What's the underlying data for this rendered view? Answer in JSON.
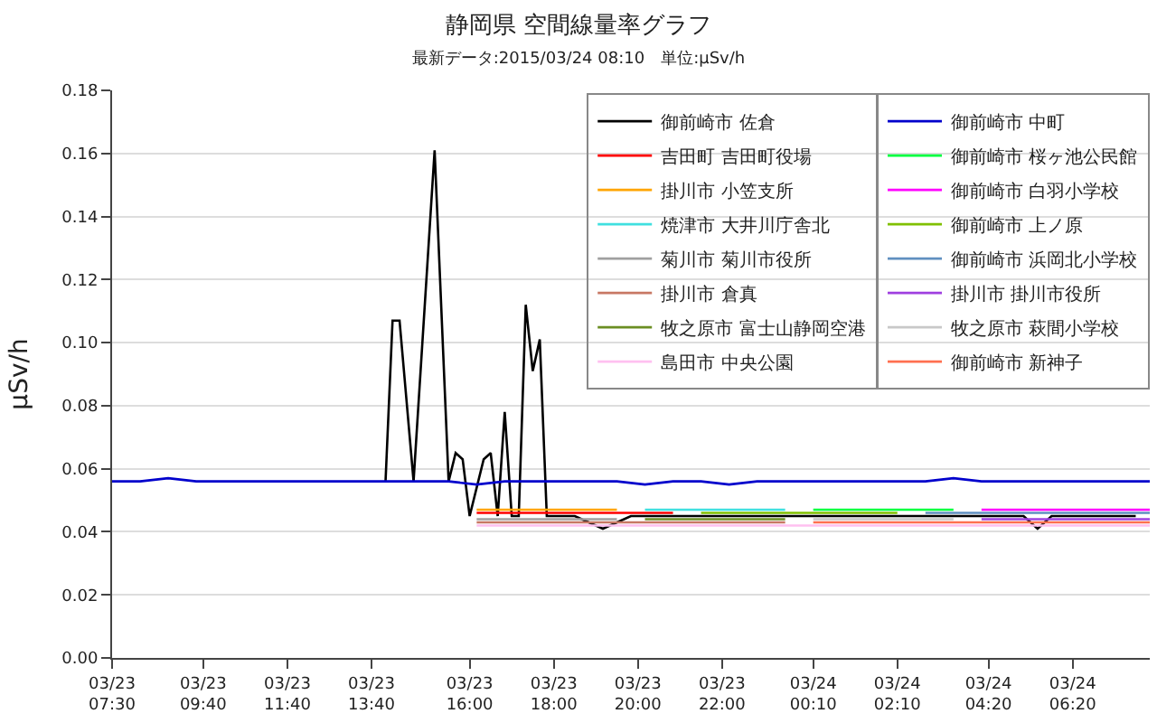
{
  "chart_data": {
    "type": "line",
    "title": "静岡県 空間線量率グラフ",
    "subtitle": "最新データ:2015/03/24 08:10　単位:μSv/h",
    "ylabel": "μSv/h",
    "x": [
      "2015-03-23T07:30",
      "2015-03-23T08:10",
      "2015-03-23T08:50",
      "2015-03-23T09:30",
      "2015-03-23T10:10",
      "2015-03-23T10:50",
      "2015-03-23T11:30",
      "2015-03-23T12:10",
      "2015-03-23T12:50",
      "2015-03-23T13:30",
      "2015-03-23T14:10",
      "2015-03-23T14:50",
      "2015-03-23T15:30",
      "2015-03-23T16:10",
      "2015-03-23T16:50",
      "2015-03-23T17:30",
      "2015-03-23T18:10",
      "2015-03-23T18:50",
      "2015-03-23T19:30",
      "2015-03-23T20:10",
      "2015-03-23T20:50",
      "2015-03-23T21:30",
      "2015-03-23T22:10",
      "2015-03-23T22:50",
      "2015-03-23T23:30",
      "2015-03-24T00:10",
      "2015-03-24T00:50",
      "2015-03-24T01:30",
      "2015-03-24T02:10",
      "2015-03-24T02:50",
      "2015-03-24T03:30",
      "2015-03-24T04:10",
      "2015-03-24T04:50",
      "2015-03-24T05:30",
      "2015-03-24T06:10",
      "2015-03-24T06:50",
      "2015-03-24T07:30",
      "2015-03-24T08:10"
    ],
    "series": [
      {
        "name": "御前崎市 佐倉",
        "color": "#000000",
        "x": [
          "2015-03-23T14:00",
          "2015-03-23T14:10",
          "2015-03-23T14:20",
          "2015-03-23T14:40",
          "2015-03-23T15:10",
          "2015-03-23T15:30",
          "2015-03-23T15:40",
          "2015-03-23T15:50",
          "2015-03-23T16:00",
          "2015-03-23T16:20",
          "2015-03-23T16:30",
          "2015-03-23T16:40",
          "2015-03-23T16:50",
          "2015-03-23T17:00",
          "2015-03-23T17:10",
          "2015-03-23T17:20",
          "2015-03-23T17:30",
          "2015-03-23T17:40",
          "2015-03-23T17:50",
          "2015-03-23T18:30",
          "2015-03-23T19:10",
          "2015-03-23T19:50",
          "2015-03-23T20:30",
          "2015-03-23T21:10",
          "2015-03-23T21:50",
          "2015-03-23T22:30",
          "2015-03-23T23:10",
          "2015-03-23T23:50",
          "2015-03-24T00:30",
          "2015-03-24T01:10",
          "2015-03-24T01:50",
          "2015-03-24T02:30",
          "2015-03-24T03:10",
          "2015-03-24T03:50",
          "2015-03-24T04:30",
          "2015-03-24T05:10",
          "2015-03-24T05:30",
          "2015-03-24T05:50",
          "2015-03-24T06:30",
          "2015-03-24T07:10",
          "2015-03-24T07:50"
        ],
        "values": [
          0.056,
          0.107,
          0.107,
          0.056,
          0.161,
          0.056,
          0.065,
          0.063,
          0.045,
          0.063,
          0.065,
          0.045,
          0.078,
          0.045,
          0.045,
          0.112,
          0.091,
          0.101,
          0.045,
          0.045,
          0.041,
          0.045,
          0.045,
          0.045,
          0.045,
          0.045,
          0.045,
          0.045,
          0.045,
          0.045,
          0.045,
          0.045,
          0.045,
          0.045,
          0.045,
          0.045,
          0.041,
          0.045,
          0.045,
          0.045,
          0.045
        ]
      },
      {
        "name": "吉田町 吉田町役場",
        "color": "#ff0000",
        "values": [
          null,
          null,
          null,
          null,
          null,
          null,
          null,
          null,
          null,
          null,
          null,
          null,
          null,
          0.046,
          0.046,
          0.046,
          0.046,
          0.046,
          0.046,
          0.046,
          0.046,
          null,
          null,
          null,
          null,
          null,
          null,
          null,
          null,
          null,
          null,
          null,
          null,
          null,
          null,
          null,
          null,
          null
        ]
      },
      {
        "name": "掛川市 小笠支所",
        "color": "#ffa500",
        "values": [
          null,
          null,
          null,
          null,
          null,
          null,
          null,
          null,
          null,
          null,
          null,
          null,
          null,
          0.047,
          0.047,
          0.047,
          0.047,
          0.047,
          0.047,
          null,
          null,
          null,
          null,
          null,
          null,
          null,
          null,
          null,
          null,
          null,
          null,
          null,
          null,
          null,
          null,
          null,
          null,
          null
        ]
      },
      {
        "name": "焼津市 大井川庁舎北",
        "color": "#40e0e0",
        "values": [
          null,
          null,
          null,
          null,
          null,
          null,
          null,
          null,
          null,
          null,
          null,
          null,
          null,
          null,
          null,
          null,
          null,
          null,
          null,
          0.047,
          0.047,
          0.047,
          0.047,
          0.047,
          0.047,
          null,
          null,
          null,
          null,
          null,
          null,
          null,
          null,
          null,
          null,
          null,
          null,
          null
        ]
      },
      {
        "name": "菊川市 菊川市役所",
        "color": "#a0a0a0",
        "values": [
          null,
          null,
          null,
          null,
          null,
          null,
          null,
          null,
          null,
          null,
          null,
          null,
          null,
          0.044,
          0.044,
          0.044,
          0.044,
          0.044,
          0.044,
          null,
          null,
          null,
          null,
          null,
          null,
          null,
          null,
          null,
          null,
          null,
          null,
          null,
          null,
          null,
          null,
          null,
          null,
          null
        ]
      },
      {
        "name": "掛川市 倉真",
        "color": "#c87864",
        "values": [
          null,
          null,
          null,
          null,
          null,
          null,
          null,
          null,
          null,
          null,
          null,
          null,
          null,
          0.043,
          0.043,
          0.043,
          0.043,
          0.043,
          0.043,
          0.043,
          0.043,
          0.043,
          0.043,
          0.043,
          0.043,
          null,
          null,
          null,
          null,
          null,
          null,
          null,
          null,
          null,
          null,
          null,
          null,
          null
        ]
      },
      {
        "name": "牧之原市 富士山静岡空港",
        "color": "#6b8e23",
        "values": [
          null,
          null,
          null,
          null,
          null,
          null,
          null,
          null,
          null,
          null,
          null,
          null,
          null,
          null,
          null,
          null,
          null,
          null,
          null,
          0.044,
          0.044,
          0.044,
          0.044,
          0.044,
          0.044,
          null,
          null,
          null,
          null,
          null,
          null,
          null,
          null,
          null,
          null,
          null,
          null,
          null
        ]
      },
      {
        "name": "島田市 中央公園",
        "color": "#ffc0f0",
        "values": [
          null,
          null,
          null,
          null,
          null,
          null,
          null,
          null,
          null,
          null,
          null,
          null,
          null,
          0.042,
          0.042,
          0.042,
          0.042,
          0.042,
          0.042,
          0.042,
          0.042,
          0.042,
          0.042,
          0.042,
          0.042,
          0.042,
          0.042,
          0.042,
          0.042,
          0.042,
          0.042,
          0.042,
          0.042,
          0.042,
          0.042,
          0.042,
          0.042,
          0.042
        ]
      },
      {
        "name": "御前崎市 中町",
        "color": "#0000cc",
        "values": [
          0.056,
          0.056,
          0.057,
          0.056,
          0.056,
          0.056,
          0.056,
          0.056,
          0.056,
          0.056,
          0.056,
          0.056,
          0.056,
          0.055,
          0.056,
          0.056,
          0.056,
          0.056,
          0.056,
          0.055,
          0.056,
          0.056,
          0.055,
          0.056,
          0.056,
          0.056,
          0.056,
          0.056,
          0.056,
          0.056,
          0.057,
          0.056,
          0.056,
          0.056,
          0.056,
          0.056,
          0.056,
          0.056
        ]
      },
      {
        "name": "御前崎市 桜ヶ池公民館",
        "color": "#00ff40",
        "values": [
          null,
          null,
          null,
          null,
          null,
          null,
          null,
          null,
          null,
          null,
          null,
          null,
          null,
          null,
          null,
          null,
          null,
          null,
          null,
          null,
          null,
          null,
          null,
          null,
          null,
          0.047,
          0.047,
          0.047,
          0.047,
          0.047,
          0.047,
          null,
          null,
          null,
          null,
          null,
          null,
          null
        ]
      },
      {
        "name": "御前崎市 白羽小学校",
        "color": "#ff00ff",
        "values": [
          null,
          null,
          null,
          null,
          null,
          null,
          null,
          null,
          null,
          null,
          null,
          null,
          null,
          null,
          null,
          null,
          null,
          null,
          null,
          null,
          null,
          null,
          null,
          null,
          null,
          null,
          null,
          null,
          null,
          null,
          null,
          0.047,
          0.047,
          0.047,
          0.047,
          0.047,
          0.047,
          0.047
        ]
      },
      {
        "name": "御前崎市 上ノ原",
        "color": "#80c000",
        "values": [
          null,
          null,
          null,
          null,
          null,
          null,
          null,
          null,
          null,
          null,
          null,
          null,
          null,
          null,
          null,
          null,
          null,
          null,
          null,
          null,
          null,
          0.046,
          0.046,
          0.046,
          0.046,
          0.046,
          0.046,
          0.046,
          0.046,
          null,
          null,
          null,
          null,
          null,
          null,
          null,
          null,
          null
        ]
      },
      {
        "name": "御前崎市 浜岡北小学校",
        "color": "#6090c0",
        "values": [
          null,
          null,
          null,
          null,
          null,
          null,
          null,
          null,
          null,
          null,
          null,
          null,
          null,
          null,
          null,
          null,
          null,
          null,
          null,
          null,
          null,
          null,
          null,
          null,
          null,
          null,
          null,
          null,
          null,
          0.046,
          0.046,
          0.046,
          0.046,
          0.046,
          0.046,
          0.046,
          0.046,
          0.046
        ]
      },
      {
        "name": "掛川市 掛川市役所",
        "color": "#a040e0",
        "values": [
          null,
          null,
          null,
          null,
          null,
          null,
          null,
          null,
          null,
          null,
          null,
          null,
          null,
          null,
          null,
          null,
          null,
          null,
          null,
          null,
          null,
          null,
          null,
          null,
          null,
          null,
          null,
          null,
          null,
          null,
          null,
          0.044,
          0.044,
          0.044,
          0.044,
          0.044,
          0.044,
          0.044
        ]
      },
      {
        "name": "牧之原市 萩間小学校",
        "color": "#c8c8c8",
        "values": [
          null,
          null,
          null,
          null,
          null,
          null,
          null,
          null,
          null,
          null,
          null,
          null,
          null,
          null,
          null,
          null,
          null,
          null,
          null,
          null,
          null,
          null,
          null,
          null,
          null,
          0.044,
          0.044,
          0.044,
          0.044,
          0.044,
          0.044,
          null,
          null,
          null,
          null,
          null,
          null,
          null
        ]
      },
      {
        "name": "御前崎市 新神子",
        "color": "#ff7050",
        "values": [
          null,
          null,
          null,
          null,
          null,
          null,
          null,
          null,
          null,
          null,
          null,
          null,
          null,
          null,
          null,
          null,
          null,
          null,
          null,
          null,
          null,
          null,
          null,
          null,
          null,
          0.043,
          0.043,
          0.043,
          0.043,
          0.043,
          0.043,
          0.043,
          0.043,
          0.043,
          0.043,
          0.043,
          0.043,
          0.043
        ]
      }
    ],
    "xlim": [
      "2015-03-23T07:30",
      "2015-03-24T08:10"
    ],
    "xticks": [
      {
        "value": "2015-03-23T07:30",
        "label": "03/23\n07:30"
      },
      {
        "value": "2015-03-23T09:40",
        "label": "03/23\n09:40"
      },
      {
        "value": "2015-03-23T11:40",
        "label": "03/23\n11:40"
      },
      {
        "value": "2015-03-23T13:40",
        "label": "03/23\n13:40"
      },
      {
        "value": "2015-03-23T16:00",
        "label": "03/23\n16:00"
      },
      {
        "value": "2015-03-23T18:00",
        "label": "03/23\n18:00"
      },
      {
        "value": "2015-03-23T20:00",
        "label": "03/23\n20:00"
      },
      {
        "value": "2015-03-23T22:00",
        "label": "03/23\n22:00"
      },
      {
        "value": "2015-03-24T00:10",
        "label": "03/24\n00:10"
      },
      {
        "value": "2015-03-24T02:10",
        "label": "03/24\n02:10"
      },
      {
        "value": "2015-03-24T04:20",
        "label": "03/24\n04:20"
      },
      {
        "value": "2015-03-24T06:20",
        "label": "03/24\n06:20"
      }
    ],
    "ylim": [
      0,
      0.18
    ],
    "yticks": [
      {
        "value": 0,
        "label": "0.00"
      },
      {
        "value": 0.02,
        "label": "0.02"
      },
      {
        "value": 0.04,
        "label": "0.04"
      },
      {
        "value": 0.06,
        "label": "0.06"
      },
      {
        "value": 0.08,
        "label": "0.08"
      },
      {
        "value": 0.1,
        "label": "0.10"
      },
      {
        "value": 0.12,
        "label": "0.12"
      },
      {
        "value": 0.14,
        "label": "0.14"
      },
      {
        "value": 0.16,
        "label": "0.16"
      },
      {
        "value": 0.18,
        "label": "0.18"
      }
    ],
    "grid": "y",
    "legend": "top right",
    "marker": "none",
    "line_style": "solid"
  }
}
